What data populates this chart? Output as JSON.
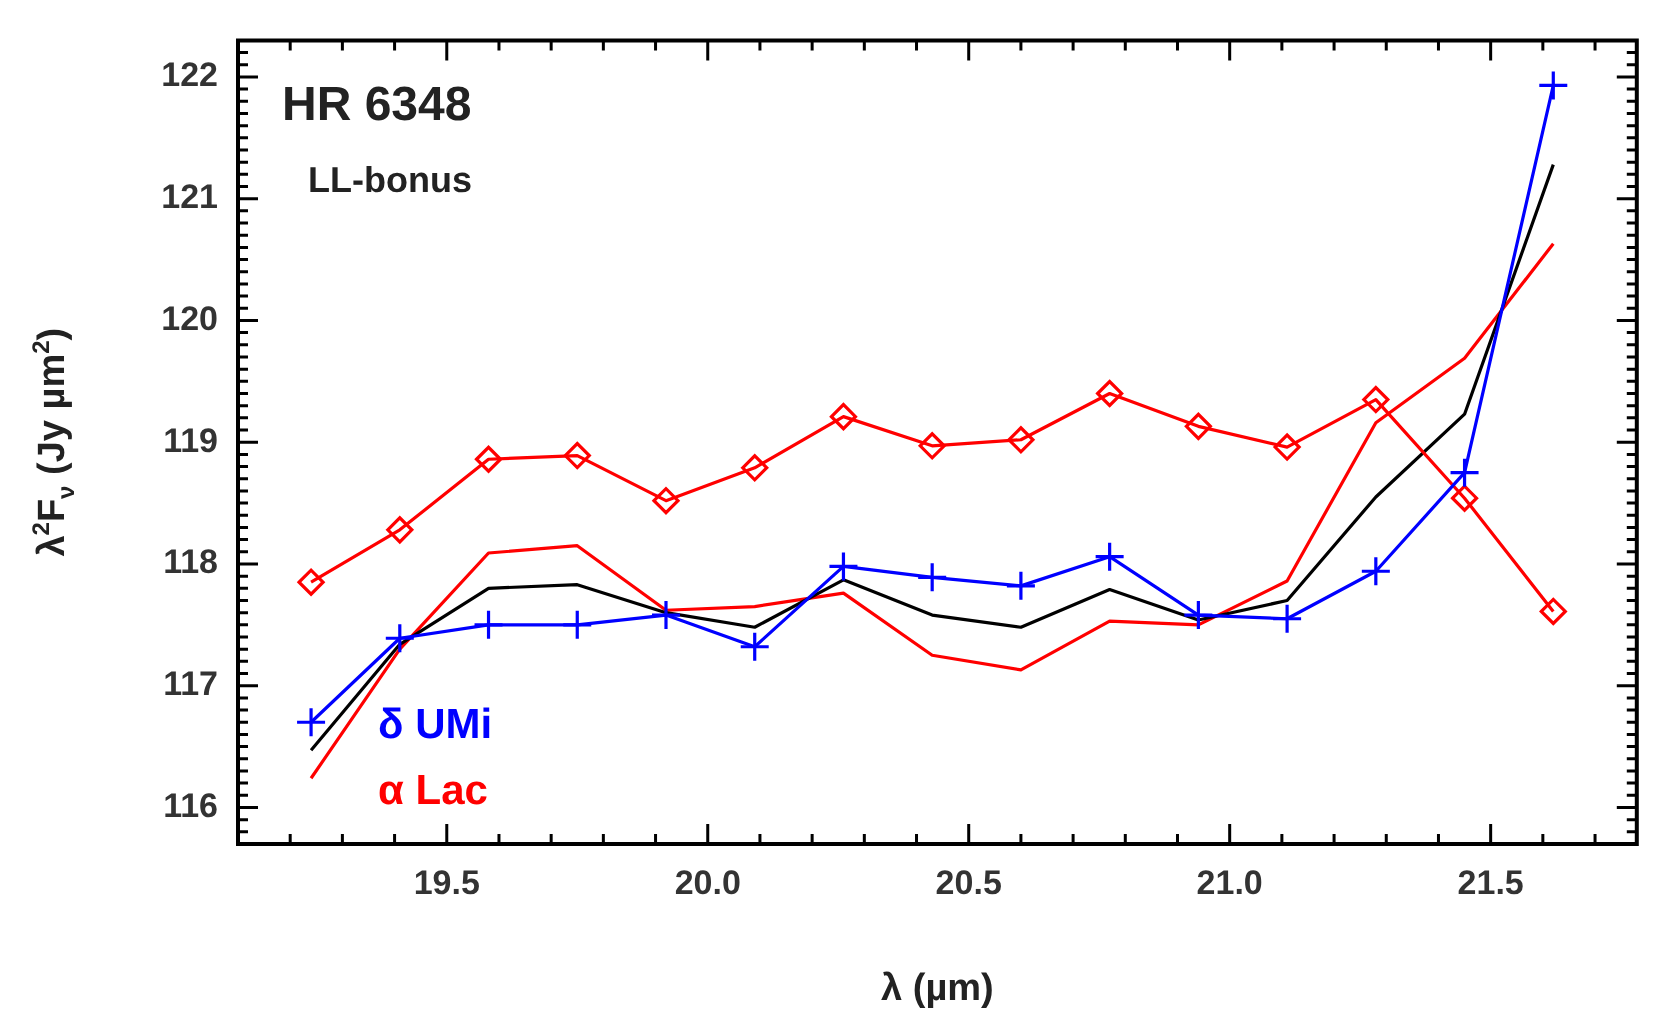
{
  "chart_data": {
    "type": "line",
    "title": "HR 6348",
    "subtitle": "LL-bonus",
    "xlabel": "λ (µm)",
    "ylabel": "λ$^{2}$F$_{ν}$ (Jy µm$^{2}$)",
    "x": [
      19.24,
      19.41,
      19.58,
      19.75,
      19.92,
      20.09,
      20.26,
      20.43,
      20.6,
      20.77,
      20.94,
      21.11,
      21.28,
      21.45,
      21.62
    ],
    "series": [
      {
        "name": "δ UMi",
        "color": "#0000ff",
        "marker": "cross",
        "values": [
          116.7,
          117.39,
          117.5,
          117.5,
          117.58,
          117.32,
          117.98,
          117.89,
          117.82,
          118.06,
          117.58,
          117.55,
          117.94,
          118.75,
          121.93
        ]
      },
      {
        "name": "α Lac",
        "color": "#ff0000",
        "marker": "diamond",
        "values": [
          117.85,
          118.28,
          118.86,
          118.89,
          118.52,
          118.79,
          119.21,
          118.97,
          119.02,
          119.4,
          119.13,
          118.96,
          119.35,
          118.54,
          117.61
        ]
      },
      {
        "color": "#000000",
        "marker": "none",
        "values": [
          116.47,
          117.34,
          117.8,
          117.83,
          117.6,
          117.48,
          117.87,
          117.58,
          117.48,
          117.79,
          117.54,
          117.7,
          118.55,
          119.23,
          121.28
        ]
      },
      {
        "color": "#ff0000",
        "marker": "none",
        "values": [
          116.24,
          117.3,
          118.09,
          118.15,
          117.62,
          117.65,
          117.76,
          117.25,
          117.13,
          117.53,
          117.5,
          117.86,
          119.16,
          119.69,
          120.63
        ]
      }
    ],
    "xlim": [
      19.1,
      21.78
    ],
    "ylim": [
      115.7,
      122.3
    ],
    "xticks": [
      {
        "value": 19.2,
        "label": null
      },
      {
        "value": 19.3,
        "label": null
      },
      {
        "value": 19.4,
        "label": null
      },
      {
        "value": 19.5,
        "label": "19.5"
      },
      {
        "value": 19.6,
        "label": null
      },
      {
        "value": 19.7,
        "label": null
      },
      {
        "value": 19.8,
        "label": null
      },
      {
        "value": 19.9,
        "label": null
      },
      {
        "value": 20.0,
        "label": "20.0"
      },
      {
        "value": 20.1,
        "label": null
      },
      {
        "value": 20.2,
        "label": null
      },
      {
        "value": 20.3,
        "label": null
      },
      {
        "value": 20.4,
        "label": null
      },
      {
        "value": 20.5,
        "label": "20.5"
      },
      {
        "value": 20.6,
        "label": null
      },
      {
        "value": 20.7,
        "label": null
      },
      {
        "value": 20.8,
        "label": null
      },
      {
        "value": 20.9,
        "label": null
      },
      {
        "value": 21.0,
        "label": "21.0"
      },
      {
        "value": 21.1,
        "label": null
      },
      {
        "value": 21.2,
        "label": null
      },
      {
        "value": 21.3,
        "label": null
      },
      {
        "value": 21.4,
        "label": null
      },
      {
        "value": 21.5,
        "label": "21.5"
      },
      {
        "value": 21.6,
        "label": null
      },
      {
        "value": 21.7,
        "label": null
      }
    ],
    "yticks": [
      {
        "value": 115.8,
        "label": null
      },
      {
        "value": 115.9,
        "label": null
      },
      116,
      {
        "value": 116.1,
        "label": null
      },
      {
        "value": 116.2,
        "label": null
      },
      {
        "value": 116.3,
        "label": null
      },
      {
        "value": 116.4,
        "label": null
      },
      {
        "value": 116.5,
        "label": null
      },
      {
        "value": 116.6,
        "label": null
      },
      {
        "value": 116.7,
        "label": null
      },
      {
        "value": 116.8,
        "label": null
      },
      {
        "value": 116.9,
        "label": null
      },
      117,
      {
        "value": 117.1,
        "label": null
      },
      {
        "value": 117.2,
        "label": null
      },
      {
        "value": 117.3,
        "label": null
      },
      {
        "value": 117.4,
        "label": null
      },
      {
        "value": 117.5,
        "label": null
      },
      {
        "value": 117.6,
        "label": null
      },
      {
        "value": 117.7,
        "label": null
      },
      {
        "value": 117.8,
        "label": null
      },
      {
        "value": 117.9,
        "label": null
      },
      118,
      {
        "value": 118.1,
        "label": null
      },
      {
        "value": 118.2,
        "label": null
      },
      {
        "value": 118.3,
        "label": null
      },
      {
        "value": 118.4,
        "label": null
      },
      {
        "value": 118.5,
        "label": null
      },
      {
        "value": 118.6,
        "label": null
      },
      {
        "value": 118.7,
        "label": null
      },
      {
        "value": 118.8,
        "label": null
      },
      {
        "value": 118.9,
        "label": null
      },
      119,
      {
        "value": 119.1,
        "label": null
      },
      {
        "value": 119.2,
        "label": null
      },
      {
        "value": 119.3,
        "label": null
      },
      {
        "value": 119.4,
        "label": null
      },
      {
        "value": 119.5,
        "label": null
      },
      {
        "value": 119.6,
        "label": null
      },
      {
        "value": 119.7,
        "label": null
      },
      {
        "value": 119.8,
        "label": null
      },
      {
        "value": 119.9,
        "label": null
      },
      120,
      {
        "value": 120.1,
        "label": null
      },
      {
        "value": 120.2,
        "label": null
      },
      {
        "value": 120.3,
        "label": null
      },
      {
        "value": 120.4,
        "label": null
      },
      {
        "value": 120.5,
        "label": null
      },
      {
        "value": 120.6,
        "label": null
      },
      {
        "value": 120.7,
        "label": null
      },
      {
        "value": 120.8,
        "label": null
      },
      {
        "value": 120.9,
        "label": null
      },
      121,
      {
        "value": 121.1,
        "label": null
      },
      {
        "value": 121.2,
        "label": null
      },
      {
        "value": 121.3,
        "label": null
      },
      {
        "value": 121.4,
        "label": null
      },
      {
        "value": 121.5,
        "label": null
      },
      {
        "value": 121.6,
        "label": null
      },
      {
        "value": 121.7,
        "label": null
      },
      {
        "value": 121.8,
        "label": null
      },
      {
        "value": 121.9,
        "label": null
      },
      122,
      {
        "value": 122.1,
        "label": null
      },
      {
        "value": 122.2,
        "label": null
      }
    ],
    "grid": false,
    "legend": "bottom left"
  }
}
